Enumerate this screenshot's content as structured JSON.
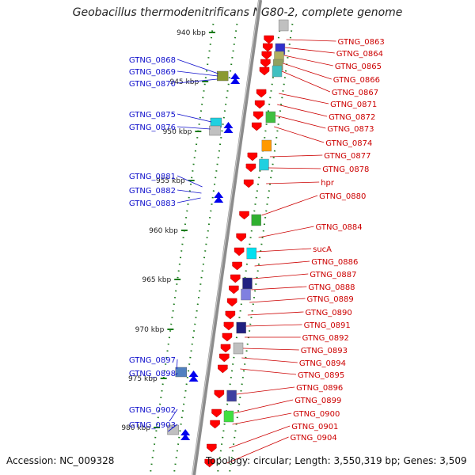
{
  "title": "Geobacillus thermodenitrificans NG80-2, complete genome",
  "footer": {
    "accession": "Accession: NC_009328",
    "summary": "Topology: circular; Length: 3,550,319 bp; Genes: 3,509"
  },
  "colors": {
    "plus_label": "#1010cc",
    "minus_label": "#cc0000",
    "plus_arrow": "#0000ee",
    "minus_arrow": "#ff0000",
    "tick": "#1a7a1a",
    "backbone": "#8c8c8c"
  },
  "ticks": [
    "940 kbp",
    "945 kbp",
    "950 kbp",
    "955 kbp",
    "960 kbp",
    "965 kbp",
    "970 kbp",
    "975 kbp",
    "980 kbp"
  ],
  "left_labels": [
    "GTNG_0868",
    "GTNG_0869",
    "GTNG_0870",
    "GTNG_0875",
    "GTNG_0876",
    "GTNG_0881",
    "GTNG_0882",
    "GTNG_0883",
    "GTNG_0897",
    "GTNG_0898",
    "GTNG_0902",
    "GTNG_0903"
  ],
  "right_labels": [
    "GTNG_0863",
    "GTNG_0864",
    "GTNG_0865",
    "GTNG_0866",
    "GTNG_0867",
    "GTNG_0871",
    "GTNG_0872",
    "GTNG_0873",
    "GTNG_0874",
    "GTNG_0877",
    "GTNG_0878",
    "hpr",
    "GTNG_0880",
    "GTNG_0884",
    "sucA",
    "GTNG_0886",
    "GTNG_0887",
    "GTNG_0888",
    "GTNG_0889",
    "GTNG_0890",
    "GTNG_0891",
    "GTNG_0892",
    "GTNG_0893",
    "GTNG_0894",
    "GTNG_0895",
    "GTNG_0896",
    "GTNG_0899",
    "GTNG_0900",
    "GTNG_0901",
    "GTNG_0904"
  ],
  "blocks_right_inner": [
    "red",
    "red",
    "red",
    "red",
    "red",
    "red",
    "red",
    "red",
    "red",
    "red",
    "red",
    "red",
    "red",
    "red",
    "red",
    "red",
    "red",
    "red",
    "red",
    "red",
    "red",
    "red",
    "red",
    "red",
    "red",
    "red",
    "red",
    "red",
    "red",
    "red"
  ],
  "blocks_right_outer": [
    "#c0c0c0",
    "#3030cc",
    "#b0b060",
    "#90a060",
    "#40c0c0",
    "#40c040",
    "#ff9900",
    "#20d0e0",
    "#30b030",
    "#00e0f0",
    "#202080",
    "#8080e0",
    "#202080",
    "#c0c0c0",
    "#4040a0",
    "#40e040"
  ],
  "blocks_left": [
    "#8a9a30",
    "#20d0e0",
    "#c0c0c0",
    "#5080c0",
    "#c0c0c0"
  ]
}
